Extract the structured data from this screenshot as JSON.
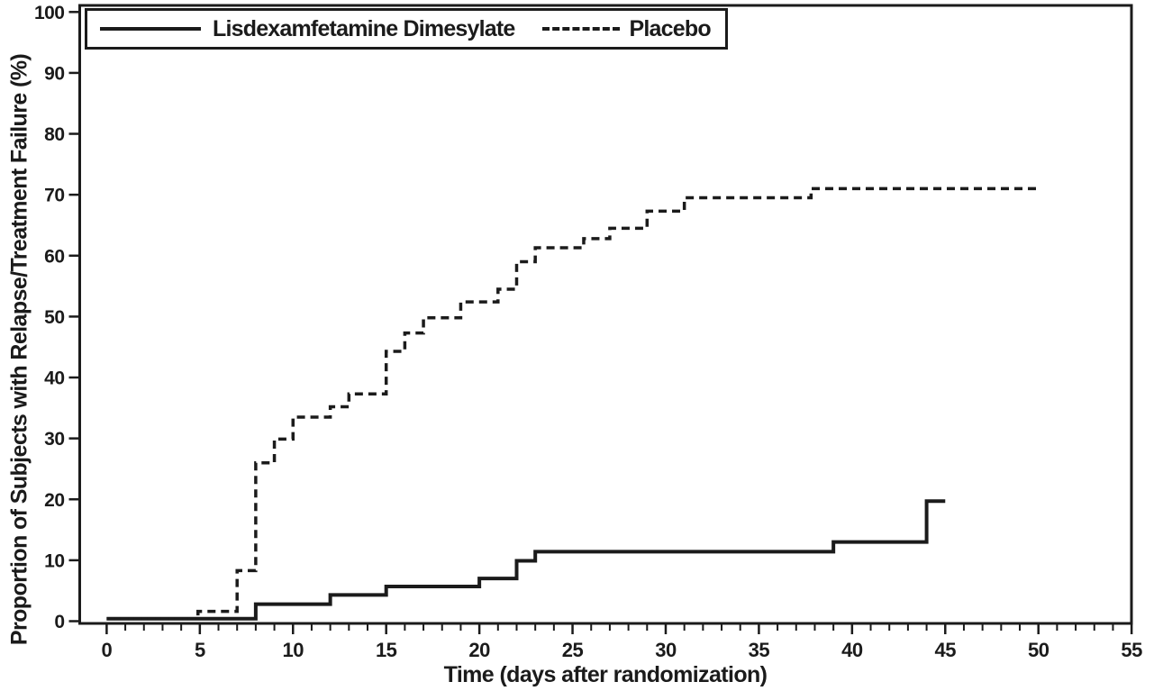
{
  "chart_data": {
    "type": "line",
    "subtype": "kaplan-meier-step-plot",
    "title": "",
    "xlabel": "Time (days after randomization)",
    "ylabel": "Proportion of Subjects with Relapse/Treatment Failure (%)",
    "xlim": [
      0,
      55
    ],
    "ylim": [
      0,
      100
    ],
    "grid": false,
    "legend_position": "top-left-inside",
    "line_color": "#1b1b1b",
    "background_color": "#ffffff",
    "x_ticks_major": [
      0,
      5,
      10,
      15,
      20,
      25,
      30,
      35,
      40,
      45,
      50,
      55
    ],
    "x_minor_tick_step": 1,
    "y_ticks": [
      0,
      10,
      20,
      30,
      40,
      50,
      60,
      70,
      80,
      90,
      100
    ],
    "series": [
      {
        "name": "Lisdexamfetamine Dimesylate",
        "line_style": "solid",
        "end_day": 45,
        "steps": [
          [
            0,
            0.4
          ],
          [
            8,
            2.8
          ],
          [
            12,
            4.3
          ],
          [
            15,
            5.7
          ],
          [
            20,
            7.0
          ],
          [
            22,
            9.9
          ],
          [
            23,
            11.4
          ],
          [
            39,
            13.0
          ],
          [
            44,
            19.7
          ]
        ]
      },
      {
        "name": "Placebo",
        "line_style": "dashed",
        "end_day": 50,
        "steps": [
          [
            0,
            0.4
          ],
          [
            4.9,
            1.6
          ],
          [
            7,
            8.3
          ],
          [
            8,
            26.0
          ],
          [
            9,
            29.9
          ],
          [
            10,
            33.5
          ],
          [
            12,
            35.2
          ],
          [
            13,
            37.3
          ],
          [
            15,
            44.3
          ],
          [
            16,
            47.3
          ],
          [
            17,
            49.8
          ],
          [
            19,
            52.4
          ],
          [
            21,
            54.5
          ],
          [
            22,
            59.0
          ],
          [
            23,
            61.3
          ],
          [
            25.6,
            62.8
          ],
          [
            27,
            64.5
          ],
          [
            29,
            67.3
          ],
          [
            31,
            69.5
          ],
          [
            37.8,
            71.0
          ]
        ]
      }
    ]
  },
  "legend": {
    "item1_label": "Lisdexamfetamine Dimesylate",
    "item2_label": "Placebo"
  },
  "axes": {
    "x_title": "Time (days after randomization)",
    "y_title": "Proportion of Subjects with Relapse/Treatment Failure (%)"
  }
}
